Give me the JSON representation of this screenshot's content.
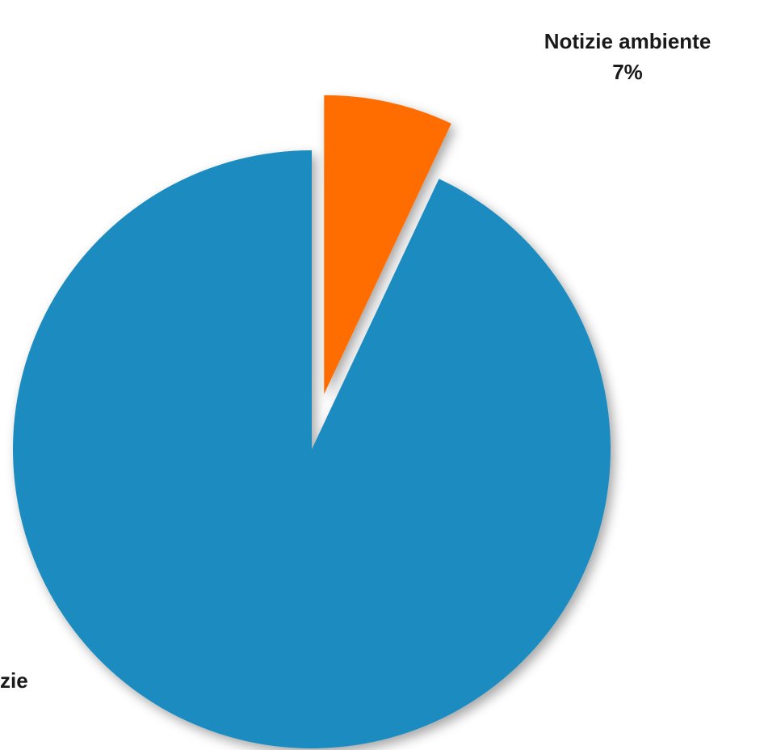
{
  "chart_data": {
    "type": "pie",
    "title": "",
    "start_angle_deg": 0,
    "direction": "clockwise",
    "slices": [
      {
        "label_lines": [
          "Notizie ambiente",
          "7%"
        ],
        "value": 7,
        "color": "#FF6D00",
        "exploded": true
      },
      {
        "label_lines": [
          "zie"
        ],
        "value": 93,
        "color": "#1C8CC0",
        "exploded": false
      }
    ]
  }
}
